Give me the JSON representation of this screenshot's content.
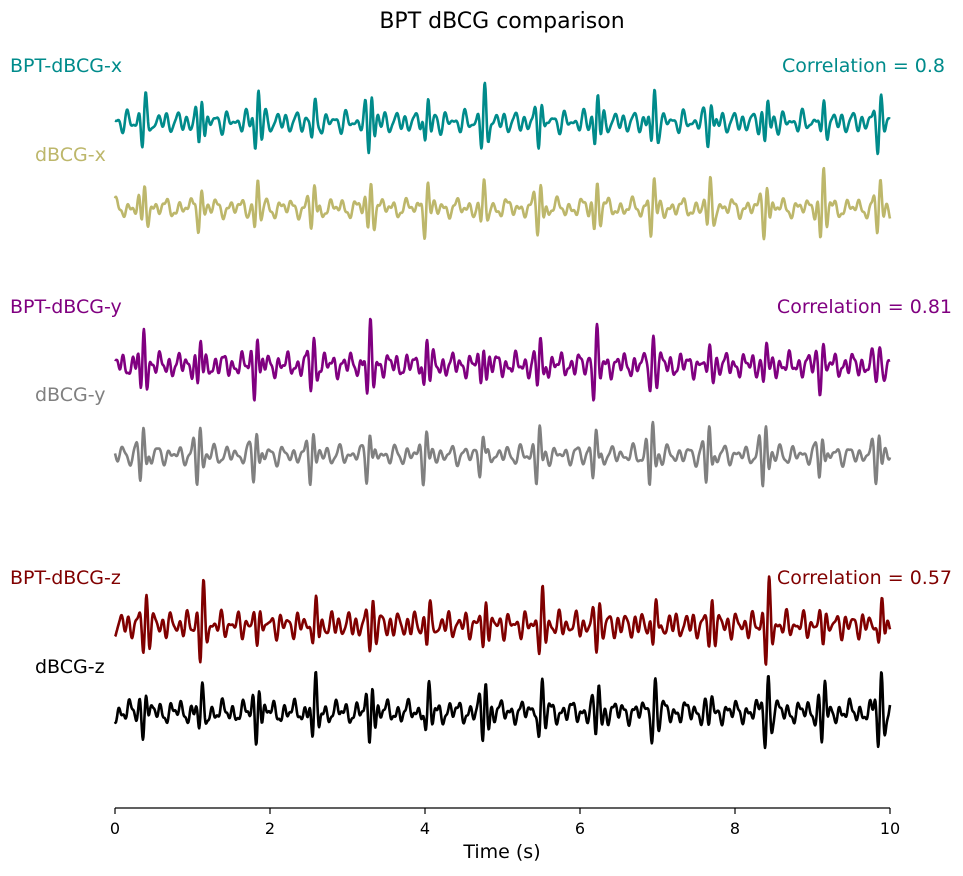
{
  "chart_data": {
    "type": "line",
    "title": "BPT dBCG comparison",
    "xlabel": "Time (s)",
    "ylabel": "",
    "xlim": [
      0,
      10
    ],
    "xticks": [
      "0",
      "2",
      "4",
      "6",
      "8",
      "10"
    ],
    "grid": false,
    "legend": "none",
    "beat_period_s": 0.73,
    "panels": [
      {
        "correlation_label": "Correlation = 0.8",
        "series": [
          {
            "name": "BPT-dBCG-x",
            "color": "#008B8B",
            "seed": 1
          },
          {
            "name": "dBCG-x",
            "color": "#BDB76B",
            "seed": 2
          }
        ]
      },
      {
        "correlation_label": "Correlation = 0.81",
        "series": [
          {
            "name": "BPT-dBCG-y",
            "color": "#800080",
            "seed": 3
          },
          {
            "name": "dBCG-y",
            "color": "#808080",
            "seed": 4
          }
        ]
      },
      {
        "correlation_label": "Correlation = 0.57",
        "series": [
          {
            "name": "BPT-dBCG-z",
            "color": "#800000",
            "seed": 5
          },
          {
            "name": "dBCG-z",
            "color": "#000000",
            "seed": 6
          }
        ]
      }
    ]
  }
}
